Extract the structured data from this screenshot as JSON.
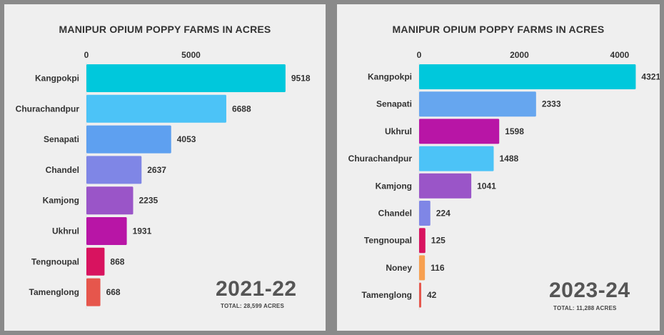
{
  "chart_data": [
    {
      "type": "bar",
      "orientation": "horizontal",
      "title": "MANIPUR OPIUM POPPY FARMS IN ACRES",
      "year_label": "2021-22",
      "total_label": "TOTAL: 28,599 ACRES",
      "categories": [
        "Kangpokpi",
        "Churachandpur",
        "Senapati",
        "Chandel",
        "Kamjong",
        "Ukhrul",
        "Tengnoupal",
        "Tamenglong"
      ],
      "values": [
        9518,
        6688,
        4053,
        2637,
        2235,
        1931,
        868,
        668
      ],
      "colors": [
        "#00c8dc",
        "#4cc3f7",
        "#5ea0f0",
        "#7f86e6",
        "#9a55c8",
        "#b815a6",
        "#d8135f",
        "#e6564c"
      ],
      "xticks": [
        0,
        5000
      ],
      "xlim": [
        0,
        10000
      ],
      "axis_position": "top",
      "grid": false
    },
    {
      "type": "bar",
      "orientation": "horizontal",
      "title": "MANIPUR OPIUM POPPY FARMS IN ACRES",
      "year_label": "2023-24",
      "total_label": "TOTAL: 11,288 ACRES",
      "categories": [
        "Kangpokpi",
        "Senapati",
        "Ukhrul",
        "Churachandpur",
        "Kamjong",
        "Chandel",
        "Tengnoupal",
        "Noney",
        "Tamenglong"
      ],
      "values": [
        4321,
        2333,
        1598,
        1488,
        1041,
        224,
        125,
        116,
        42
      ],
      "colors": [
        "#00c8dc",
        "#66a6ef",
        "#b815a6",
        "#4cc3f7",
        "#9a55c8",
        "#7f86e6",
        "#d8135f",
        "#f7a050",
        "#e6564c"
      ],
      "xticks": [
        0,
        2000,
        4000
      ],
      "xlim": [
        0,
        4500
      ],
      "axis_position": "top",
      "grid": false
    }
  ]
}
